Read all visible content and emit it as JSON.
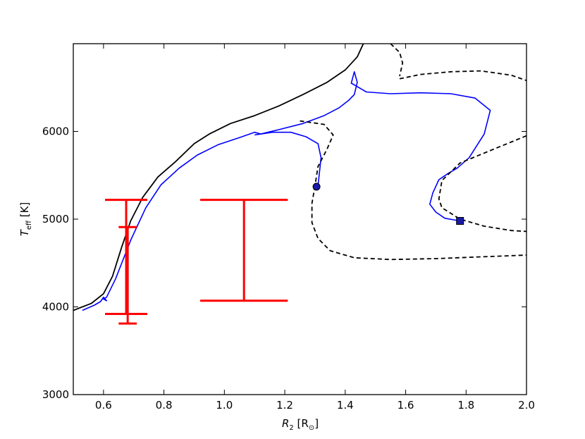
{
  "chart_data": {
    "type": "line",
    "xlabel": "R_2 [R_⊙]",
    "ylabel": "T_eff [K]",
    "xlim": [
      0.5,
      2.0
    ],
    "ylim": [
      3000,
      7000
    ],
    "xticks": [
      "0.6",
      "0.8",
      "1.0",
      "1.2",
      "1.4",
      "1.6",
      "1.8",
      "2.0"
    ],
    "xtick_values": [
      0.6,
      0.8,
      1.0,
      1.2,
      1.4,
      1.6,
      1.8,
      2.0
    ],
    "yticks": [
      "3000",
      "4000",
      "5000",
      "6000"
    ],
    "ytick_values": [
      3000,
      4000,
      5000,
      6000
    ],
    "grid": false,
    "colors": {
      "black_track": "#000000",
      "blue_track": "#0000ff",
      "dashed_track": "#000000",
      "error_bars": "#ff0000",
      "marker_fill": "#1a1aa6"
    },
    "series": [
      {
        "style": "solid-black",
        "x": [
          0.5,
          0.56,
          0.6,
          0.63,
          0.66,
          0.69,
          0.73,
          0.78,
          0.84,
          0.9,
          0.95,
          1.02,
          1.1,
          1.18,
          1.26,
          1.34,
          1.4,
          1.44,
          1.46
        ],
        "y": [
          3960,
          4040,
          4150,
          4350,
          4680,
          4980,
          5250,
          5480,
          5660,
          5860,
          5970,
          6090,
          6180,
          6290,
          6420,
          6560,
          6700,
          6850,
          7000
        ]
      },
      {
        "style": "solid-blue",
        "x": [
          0.53,
          0.57,
          0.59,
          0.6,
          0.61,
          0.6,
          0.61,
          0.64,
          0.69,
          0.74,
          0.79,
          0.85,
          0.91,
          0.98,
          1.05,
          1.1,
          1.12,
          1.18,
          1.26,
          1.33,
          1.38,
          1.41,
          1.43,
          1.44,
          1.43,
          1.42,
          1.47,
          1.55,
          1.65,
          1.75,
          1.83,
          1.88,
          1.86,
          1.81,
          1.77,
          1.74,
          1.71,
          1.69,
          1.68,
          1.7,
          1.73,
          1.78
        ],
        "y": [
          3960,
          4020,
          4060,
          4110,
          4070,
          4090,
          4110,
          4320,
          4760,
          5130,
          5390,
          5580,
          5730,
          5850,
          5930,
          5990,
          5970,
          6020,
          6090,
          6180,
          6270,
          6350,
          6420,
          6560,
          6680,
          6550,
          6450,
          6430,
          6440,
          6430,
          6380,
          6240,
          5970,
          5700,
          5580,
          5520,
          5450,
          5300,
          5170,
          5080,
          5010,
          4980
        ]
      },
      {
        "style": "solid-blue",
        "x": [
          1.1,
          1.16,
          1.22,
          1.27,
          1.29,
          1.31,
          1.32,
          1.31
        ],
        "y": [
          5960,
          5990,
          5990,
          5940,
          5900,
          5860,
          5700,
          5380
        ]
      },
      {
        "style": "dashed-black",
        "x": [
          1.25,
          1.33,
          1.36,
          1.34,
          1.31,
          1.3
        ],
        "y": [
          6120,
          6080,
          5960,
          5800,
          5600,
          5380
        ]
      },
      {
        "style": "dashed-black",
        "x": [
          1.3,
          1.29,
          1.29,
          1.31,
          1.35,
          1.43,
          1.55,
          1.7,
          1.85,
          2.0
        ],
        "y": [
          5380,
          5180,
          4960,
          4780,
          4640,
          4560,
          4540,
          4550,
          4570,
          4590
        ]
      },
      {
        "style": "dashed-black",
        "x": [
          1.55,
          1.58,
          1.59,
          1.58
        ],
        "y": [
          7000,
          6900,
          6780,
          6630
        ]
      },
      {
        "style": "dashed-black",
        "x": [
          1.58,
          1.65,
          1.75,
          1.85,
          1.95,
          2.0
        ],
        "y": [
          6600,
          6650,
          6680,
          6690,
          6640,
          6580
        ]
      },
      {
        "style": "dashed-black",
        "x": [
          2.0,
          1.9,
          1.78,
          1.72,
          1.71,
          1.72,
          1.78,
          1.86,
          1.95,
          2.0
        ],
        "y": [
          5950,
          5810,
          5640,
          5440,
          5230,
          5130,
          5000,
          4920,
          4870,
          4860
        ]
      }
    ],
    "markers": [
      {
        "shape": "circle",
        "x": 1.305,
        "y": 5370
      },
      {
        "shape": "square",
        "x": 1.78,
        "y": 4980
      }
    ],
    "error_bars": [
      {
        "x": 0.675,
        "ylow": 3920,
        "yhigh": 5220,
        "xhalf": 0.07
      },
      {
        "x": 0.68,
        "ylow": 3810,
        "yhigh": 4910,
        "xhalf": 0.03
      },
      {
        "x": 1.065,
        "ylow": 4070,
        "yhigh": 5220,
        "xhalf": 0.145
      }
    ]
  }
}
